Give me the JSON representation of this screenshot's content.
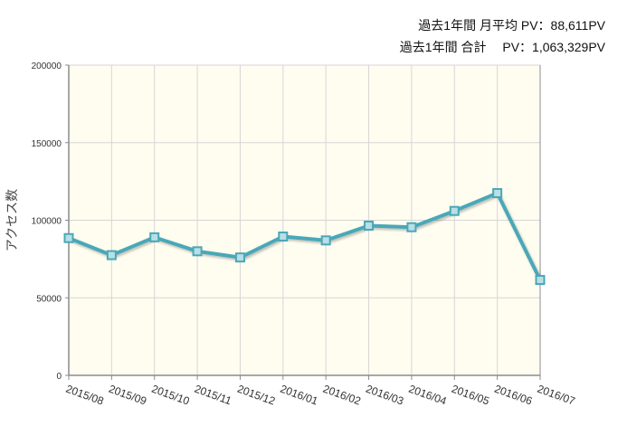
{
  "summary": {
    "avg_line": "過去1年間 月平均 PV：88,611PV",
    "total_line": "過去1年間 合計　 PV：1,063,329PV"
  },
  "colors": {
    "plot_background": "#fffdf0",
    "line": "#4aa8b8",
    "marker_fill": "#b9dfe6",
    "grid": "#d6d6d6",
    "axis": "#8c8c8c"
  },
  "chart_data": {
    "type": "line",
    "categories": [
      "2015/08",
      "2015/09",
      "2015/10",
      "2015/11",
      "2015/12",
      "2016/01",
      "2016/02",
      "2016/03",
      "2016/04",
      "2016/05",
      "2016/06",
      "2016/07"
    ],
    "series": [
      {
        "values": [
          88500,
          77500,
          89000,
          80000,
          76000,
          89500,
          87000,
          96500,
          95500,
          106000,
          117500,
          61500
        ]
      }
    ],
    "ylabel": "アクセス数",
    "xlabel": "",
    "ylim": [
      0,
      200000
    ],
    "yticks": [
      0,
      50000,
      100000,
      150000,
      200000
    ],
    "grid": true
  }
}
